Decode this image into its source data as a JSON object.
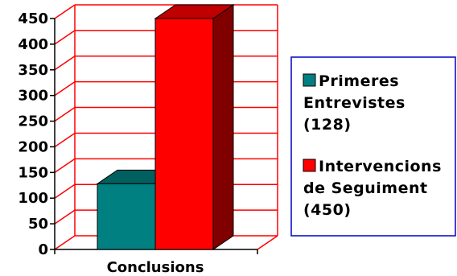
{
  "chart_data": {
    "type": "bar",
    "categories": [
      "Conclusions"
    ],
    "series": [
      {
        "name": "Primeres Entrevistes (128)",
        "values": [
          128
        ],
        "color": "#008080"
      },
      {
        "name": "Intervencions de Seguiment (450)",
        "values": [
          450
        ],
        "color": "#ff0000"
      }
    ],
    "ylim": [
      0,
      450
    ],
    "yticks": [
      "0",
      "50",
      "100",
      "150",
      "200",
      "250",
      "300",
      "350",
      "400",
      "450"
    ],
    "xlabel": "Conclusions",
    "gridline_color": "#ff0000",
    "grid": true,
    "legend_position": "right",
    "legend_border_color": "#0000cc",
    "legend": [
      {
        "lines": [
          "Primeres",
          "Entrevistes",
          "(128)"
        ],
        "color": "#008080"
      },
      {
        "lines": [
          "Intervencions",
          "de Seguiment",
          "(450)"
        ],
        "color": "#ff0000"
      }
    ]
  }
}
